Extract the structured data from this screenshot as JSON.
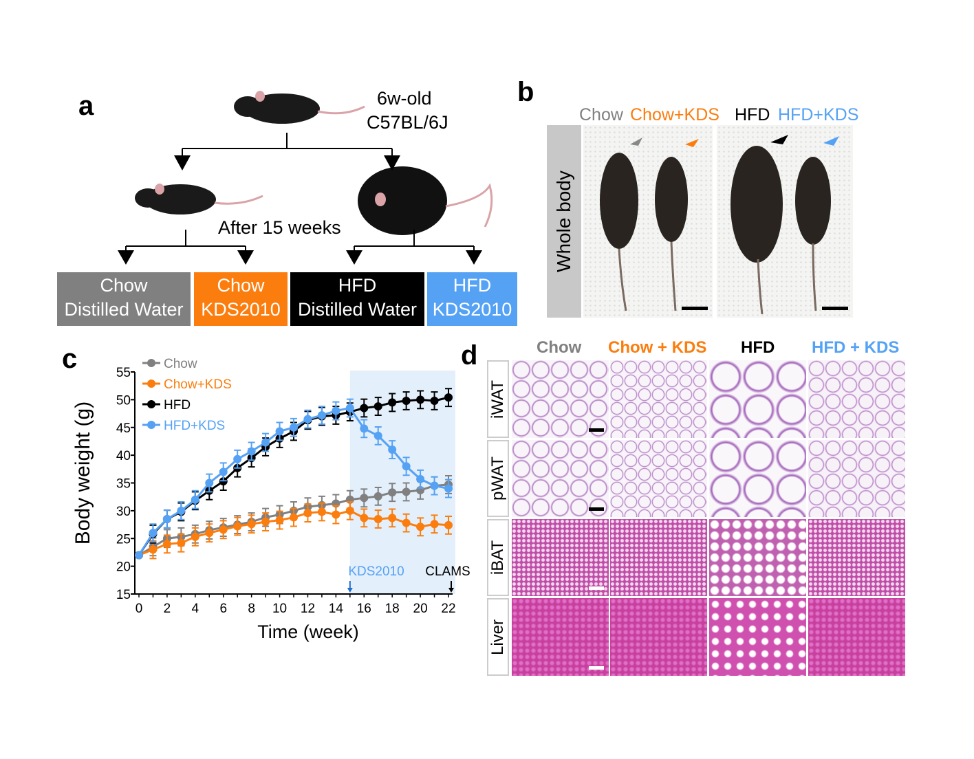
{
  "panels": {
    "a": "a",
    "b": "b",
    "c": "c",
    "d": "d"
  },
  "panel_a": {
    "mouse_age": "6w-old",
    "strain": "C57BL/6J",
    "duration": "After 15 weeks",
    "groups": [
      {
        "line1": "Chow",
        "line2": "Distilled Water",
        "color": "#808080"
      },
      {
        "line1": "Chow",
        "line2": "KDS2010",
        "color": "#fb7d0e"
      },
      {
        "line1": "HFD",
        "line2": "Distilled Water",
        "color": "#000000"
      },
      {
        "line1": "HFD",
        "line2": "KDS2010",
        "color": "#55a2f5"
      }
    ]
  },
  "panel_b": {
    "labels": [
      {
        "text": "Chow",
        "color": "#808080"
      },
      {
        "text": "Chow+KDS",
        "color": "#fb7d0e"
      },
      {
        "text": "HFD",
        "color": "#000000"
      },
      {
        "text": "HFD+KDS",
        "color": "#55a2f5"
      }
    ],
    "row_label": "Whole body"
  },
  "chart_data": {
    "type": "line",
    "xlabel": "Time (week)",
    "ylabel": "Body weight (g)",
    "xlim": [
      0,
      22
    ],
    "ylim": [
      15,
      55
    ],
    "xticks": [
      0,
      2,
      4,
      6,
      8,
      10,
      12,
      14,
      16,
      18,
      20,
      22
    ],
    "yticks": [
      15,
      20,
      25,
      30,
      35,
      40,
      45,
      50,
      55
    ],
    "x": [
      0,
      1,
      2,
      3,
      4,
      5,
      6,
      7,
      8,
      9,
      10,
      11,
      12,
      13,
      14,
      15,
      16,
      17,
      18,
      19,
      20,
      21,
      22
    ],
    "legend_position": "top-left",
    "series": [
      {
        "name": "Chow",
        "color": "#808080",
        "values": [
          22,
          23.5,
          25,
          25.3,
          25.8,
          26.5,
          27,
          27.5,
          28,
          28.8,
          29.3,
          30,
          30.7,
          31,
          31.3,
          32,
          32.3,
          32.6,
          33.3,
          33.4,
          33.7,
          34.5,
          34.7
        ]
      },
      {
        "name": "Chow+KDS",
        "color": "#fb7d0e",
        "values": [
          22,
          23,
          24,
          24.2,
          25.3,
          26,
          26.6,
          27.2,
          27.6,
          28,
          28.3,
          28.8,
          29.6,
          29.8,
          29.3,
          30,
          28.7,
          28.5,
          28.7,
          27.8,
          27.1,
          27.6,
          27.4
        ]
      },
      {
        "name": "HFD",
        "color": "#000000",
        "values": [
          22,
          25.8,
          28.5,
          29.8,
          31.8,
          33.6,
          35.3,
          37.7,
          39.5,
          41.5,
          43,
          44.3,
          46.3,
          47,
          47.2,
          47.8,
          48.5,
          48.8,
          49.5,
          49.8,
          50,
          49.8,
          50.4
        ]
      },
      {
        "name": "HFD+KDS",
        "color": "#55a2f5",
        "values": [
          22,
          26,
          28.5,
          30,
          32,
          35,
          37,
          39.3,
          40.7,
          42.3,
          44.3,
          45,
          46.5,
          47.2,
          48,
          48.5,
          44.8,
          43.5,
          41,
          38,
          35.7,
          34.5,
          34
        ]
      }
    ],
    "shaded_region": {
      "x": [
        15,
        22
      ],
      "color": "#e3effb"
    },
    "annotations": [
      {
        "text": "KDS2010",
        "x": 15,
        "color": "#55a2f5"
      },
      {
        "text": "CLAMS",
        "x": 22,
        "color": "#000000"
      }
    ]
  },
  "panel_d": {
    "columns": [
      {
        "text": "Chow",
        "color": "#808080"
      },
      {
        "text": "Chow + KDS",
        "color": "#fb7d0e"
      },
      {
        "text": "HFD",
        "color": "#000000"
      },
      {
        "text": "HFD + KDS",
        "color": "#55a2f5"
      }
    ],
    "rows": [
      "iWAT",
      "pWAT",
      "iBAT",
      "Liver"
    ]
  }
}
